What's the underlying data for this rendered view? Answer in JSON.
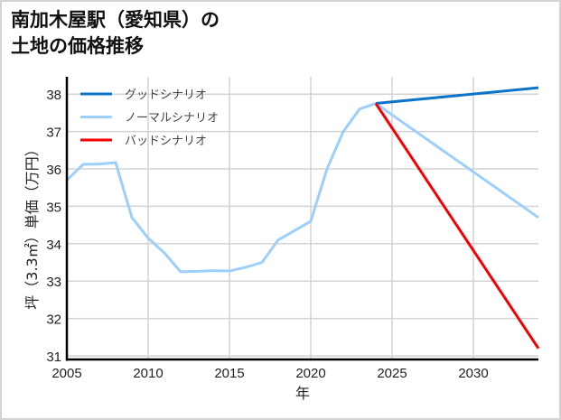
{
  "title": {
    "line1": "南加木屋駅（愛知県）の",
    "line2": "土地の価格推移"
  },
  "colors": {
    "good": "#0a74c9",
    "normal": "#9dcffb",
    "bad": "#f50000",
    "grid": "#d3d3d3",
    "frame": "#d3d3d3"
  },
  "chart_data": {
    "type": "line",
    "title": "南加木屋駅（愛知県）の土地の価格推移",
    "xlabel": "年",
    "ylabel": "坪（3.3㎡）単価（万円）",
    "xlim": [
      2005,
      2034
    ],
    "ylim": [
      31,
      38.2
    ],
    "xticks": [
      "2005",
      "2010",
      "2015",
      "2020",
      "2025",
      "2030"
    ],
    "yticks": [
      "31",
      "32",
      "33",
      "34",
      "35",
      "36",
      "37",
      "38"
    ],
    "grid": true,
    "legend_position": "upper left",
    "legend": [
      "グッドシナリオ",
      "ノーマルシナリオ",
      "バッドシナリオ"
    ],
    "series": [
      {
        "name": "ノーマルシナリオ",
        "color": "#9dcffb",
        "x": [
          2005,
          2006,
          2007,
          2008,
          2009,
          2010,
          2011,
          2012,
          2013,
          2014,
          2015,
          2016,
          2017,
          2018,
          2019,
          2020,
          2021,
          2022,
          2023,
          2024,
          2034
        ],
        "values": [
          35.7,
          36.12,
          36.13,
          36.17,
          34.7,
          34.15,
          33.75,
          33.25,
          33.26,
          33.28,
          33.27,
          33.37,
          33.5,
          34.1,
          34.35,
          34.6,
          36.0,
          37.0,
          37.6,
          37.75,
          34.7
        ]
      },
      {
        "name": "グッドシナリオ",
        "color": "#0a74c9",
        "x": [
          2024,
          2034
        ],
        "values": [
          37.75,
          38.17
        ]
      },
      {
        "name": "バッドシナリオ",
        "color": "#f50000",
        "x": [
          2024,
          2034
        ],
        "values": [
          37.75,
          31.2
        ]
      }
    ]
  }
}
